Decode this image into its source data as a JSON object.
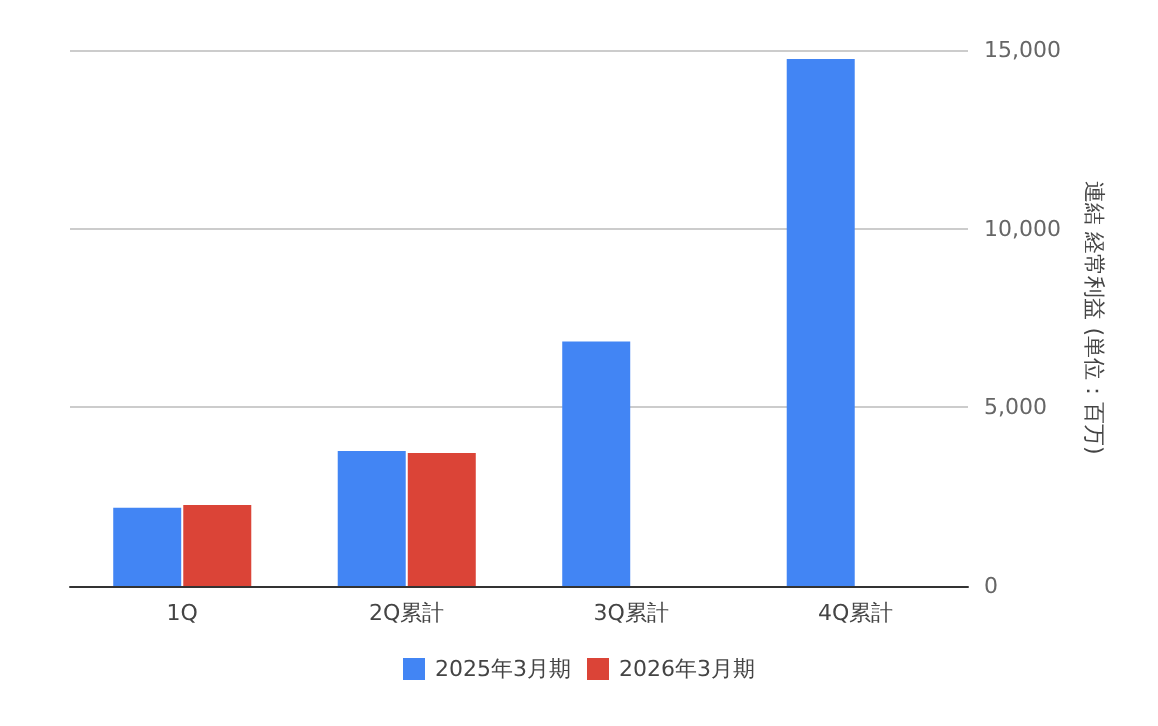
{
  "chart_data": {
    "type": "bar",
    "ylabel": "連結 経常利益 (単位：百万)",
    "categories": [
      "1Q",
      "2Q累計",
      "3Q累計",
      "4Q累計"
    ],
    "series": [
      {
        "name": "2025年3月期",
        "color": "#4285f4",
        "values": [
          2190,
          3780,
          6840,
          14750
        ]
      },
      {
        "name": "2026年3月期",
        "color": "#db4437",
        "values": [
          2270,
          3720,
          null,
          null
        ]
      }
    ],
    "ylim": [
      0,
      15000
    ],
    "yticks": [
      {
        "value": 0,
        "label": "0"
      },
      {
        "value": 5000,
        "label": "5,000"
      },
      {
        "value": 10000,
        "label": "10,000"
      },
      {
        "value": 15000,
        "label": "15,000"
      }
    ],
    "grid": "y",
    "legend": "bottom"
  }
}
